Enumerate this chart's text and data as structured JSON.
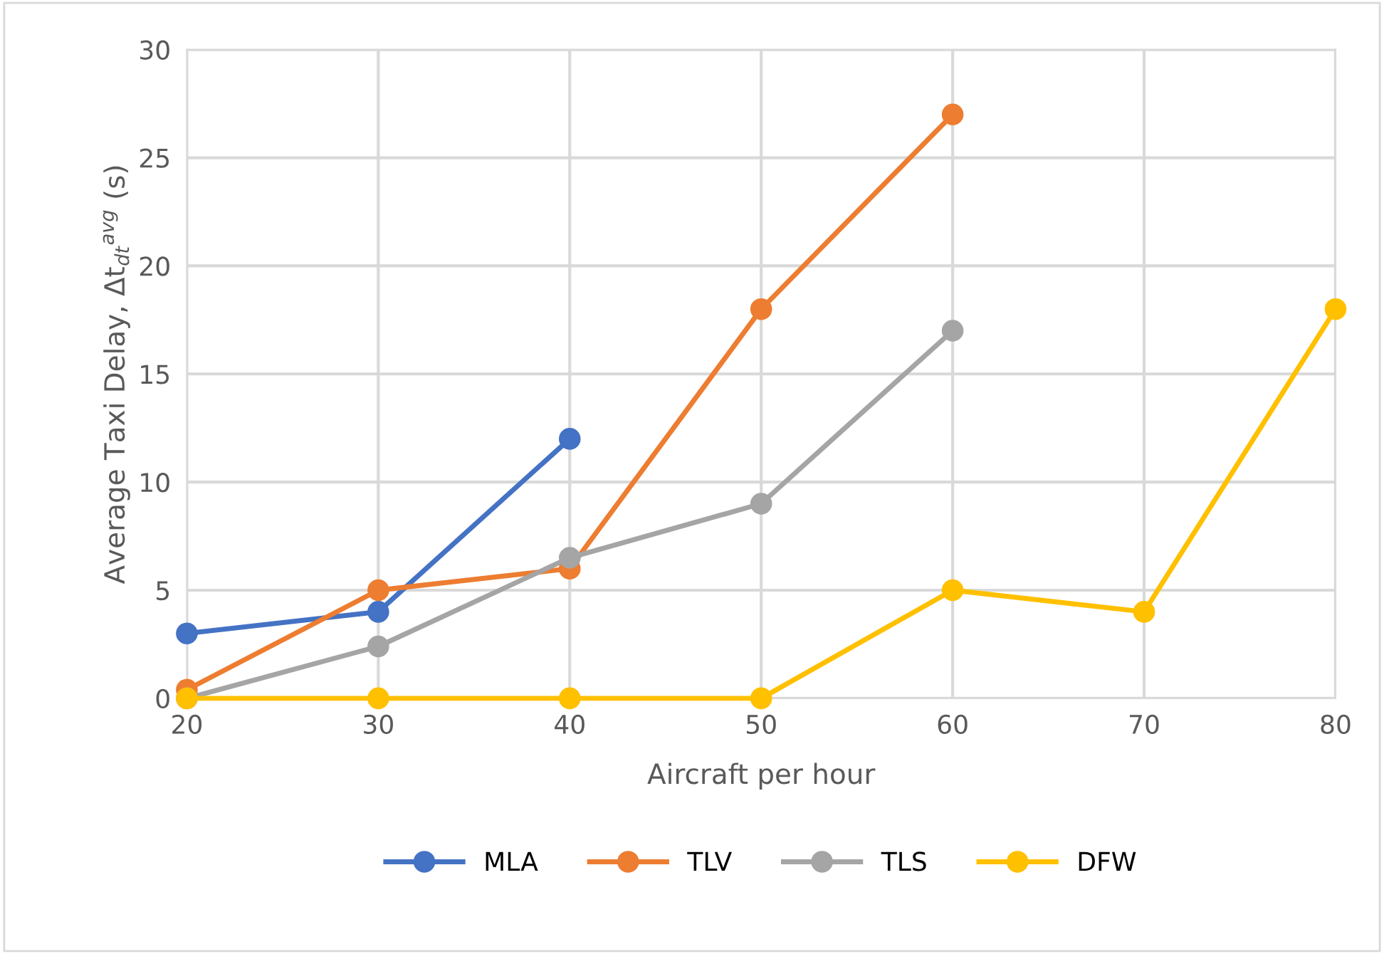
{
  "chart_data": {
    "type": "line",
    "xlabel": "Aircraft per hour",
    "ylabel": "Average Taxi Delay, Δt$_{dt}$$^{avg}$ (s)",
    "xlim": [
      20,
      80
    ],
    "xticks": [
      20,
      30,
      40,
      50,
      60,
      70,
      80
    ],
    "ylim": [
      0,
      30
    ],
    "yticks": [
      0,
      5,
      10,
      15,
      20,
      25,
      30
    ],
    "grid": true,
    "legend": "bottom",
    "marker": "circle",
    "line_style": "solid",
    "series": [
      {
        "name": "MLA",
        "color": "#4472c4",
        "x": [
          20,
          30,
          40
        ],
        "values": [
          3,
          4,
          12
        ]
      },
      {
        "name": "TLV",
        "color": "#ed7d31",
        "x": [
          20,
          30,
          40,
          50,
          60
        ],
        "values": [
          0.4,
          5,
          6,
          18,
          27
        ]
      },
      {
        "name": "TLS",
        "color": "#a5a5a5",
        "x": [
          20,
          30,
          40,
          50,
          60
        ],
        "values": [
          0,
          2.4,
          6.5,
          9,
          17
        ]
      },
      {
        "name": "DFW",
        "color": "#ffc000",
        "x": [
          20,
          30,
          40,
          50,
          60,
          70,
          80
        ],
        "values": [
          0,
          0,
          0,
          0,
          5,
          4,
          18
        ]
      }
    ]
  }
}
